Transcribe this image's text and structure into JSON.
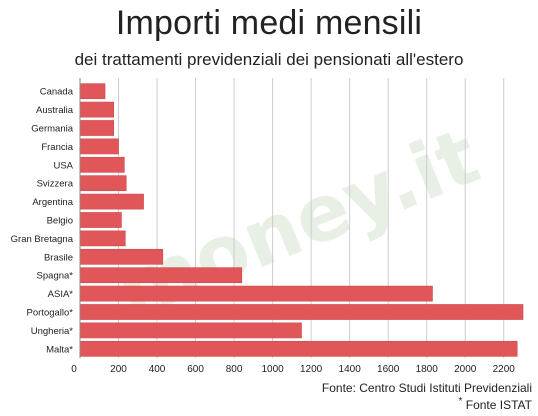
{
  "header": {
    "title": "Importi medi mensili",
    "subtitle": "dei trattamenti previdenziali dei pensionati all'estero"
  },
  "footer": {
    "source": "Fonte: Centro Studi Istituti Previdenziali",
    "footnote_mark": "*",
    "footnote": " Fonte ISTAT"
  },
  "watermark": "money.it",
  "colors": {
    "bar": "#e15759",
    "bar_stroke": "#c94a4c",
    "grid": "#cccccc",
    "text": "#222222"
  },
  "chart_data": {
    "type": "bar",
    "orientation": "horizontal",
    "title": "Importi medi mensili",
    "subtitle": "dei trattamenti previdenziali dei pensionati all'estero",
    "categories": [
      "Canada",
      "Australia",
      "Germania",
      "Francia",
      "USA",
      "Svizzera",
      "Argentina",
      "Belgio",
      "Gran Bretagna",
      "Brasile",
      "Spagna*",
      "ASIA*",
      "Portogallo*",
      "Ungheria*",
      "Malta*"
    ],
    "values": [
      130,
      175,
      175,
      200,
      230,
      240,
      330,
      215,
      235,
      430,
      840,
      1830,
      2300,
      1150,
      2270
    ],
    "xlim": [
      0,
      2300
    ],
    "xticks": [
      0,
      200,
      400,
      600,
      800,
      1000,
      1200,
      1400,
      1600,
      1800,
      2000,
      2200
    ],
    "grid": true
  }
}
